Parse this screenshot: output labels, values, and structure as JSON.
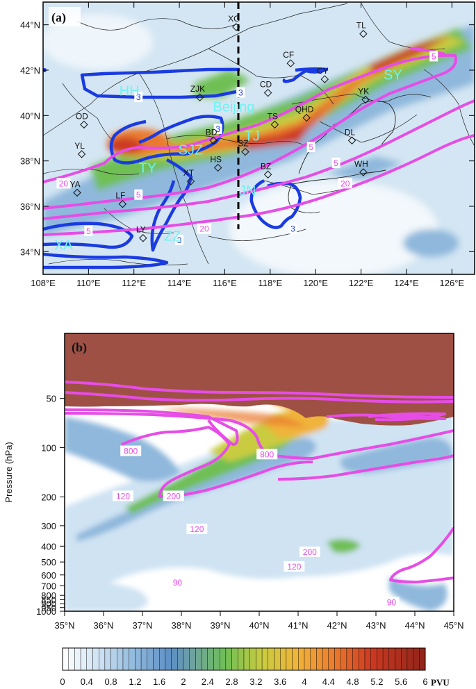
{
  "chart_data": [
    {
      "type": "heatmap",
      "panel_label": "(a)",
      "x_ticks": [
        "108°E",
        "110°E",
        "112°E",
        "114°E",
        "116°E",
        "118°E",
        "120°E",
        "122°E",
        "124°E",
        "126°E"
      ],
      "y_ticks": [
        "34°N",
        "36°N",
        "38°N",
        "40°N",
        "42°N",
        "44°N"
      ],
      "xlim": [
        108,
        127
      ],
      "ylim": [
        33,
        45
      ],
      "stations": [
        {
          "name": "XG",
          "lon": 116.5,
          "lat": 43.9
        },
        {
          "name": "TL",
          "lon": 122.1,
          "lat": 43.6
        },
        {
          "name": "CF",
          "lon": 118.9,
          "lat": 42.3
        },
        {
          "name": "CY",
          "lon": 120.4,
          "lat": 41.6
        },
        {
          "name": "ZJK",
          "lon": 114.9,
          "lat": 40.8
        },
        {
          "name": "CD",
          "lon": 117.9,
          "lat": 41.0
        },
        {
          "name": "YK",
          "lon": 122.2,
          "lat": 40.7
        },
        {
          "name": "OD",
          "lon": 109.8,
          "lat": 39.6
        },
        {
          "name": "QHD",
          "lon": 119.6,
          "lat": 39.9
        },
        {
          "name": "TS",
          "lon": 118.2,
          "lat": 39.6
        },
        {
          "name": "BD",
          "lon": 115.5,
          "lat": 38.9
        },
        {
          "name": "SZ",
          "lon": 116.9,
          "lat": 38.4
        },
        {
          "name": "DL",
          "lon": 121.6,
          "lat": 38.9
        },
        {
          "name": "YL",
          "lon": 109.7,
          "lat": 38.3
        },
        {
          "name": "HS",
          "lon": 115.7,
          "lat": 37.7
        },
        {
          "name": "BZ",
          "lon": 117.9,
          "lat": 37.4
        },
        {
          "name": "XT",
          "lon": 114.5,
          "lat": 37.1
        },
        {
          "name": "WH",
          "lon": 122.1,
          "lat": 37.5
        },
        {
          "name": "YA",
          "lon": 109.5,
          "lat": 36.6
        },
        {
          "name": "LF",
          "lon": 111.5,
          "lat": 36.1
        },
        {
          "name": "LY",
          "lon": 112.4,
          "lat": 34.6
        }
      ],
      "cities": [
        {
          "name": "HH",
          "lon": 111.8,
          "lat": 41.1
        },
        {
          "name": "Beijing",
          "lon": 116.4,
          "lat": 40.4
        },
        {
          "name": "SY",
          "lon": 123.4,
          "lat": 41.8
        },
        {
          "name": "TJ",
          "lon": 117.2,
          "lat": 39.1
        },
        {
          "name": "SJZ",
          "lon": 114.5,
          "lat": 38.5
        },
        {
          "name": "TY",
          "lon": 112.6,
          "lat": 37.7
        },
        {
          "name": "JN",
          "lon": 117.0,
          "lat": 36.7
        },
        {
          "name": "ZZ",
          "lon": 113.7,
          "lat": 34.7
        },
        {
          "name": "XA",
          "lon": 108.9,
          "lat": 34.3
        }
      ],
      "contour_labels": [
        {
          "text": "3",
          "color": "blue",
          "lon": 112.2,
          "lat": 40.8
        },
        {
          "text": "3",
          "color": "blue",
          "lon": 116.7,
          "lat": 41.0
        },
        {
          "text": "3",
          "color": "blue",
          "lon": 115.7,
          "lat": 39.4
        },
        {
          "text": "3",
          "color": "blue",
          "lon": 114.0,
          "lat": 34.5
        },
        {
          "text": "3",
          "color": "blue",
          "lon": 119.0,
          "lat": 35.0
        },
        {
          "text": "5",
          "color": "magenta",
          "lon": 125.2,
          "lat": 42.6
        },
        {
          "text": "5",
          "color": "magenta",
          "lon": 119.8,
          "lat": 38.6
        },
        {
          "text": "5",
          "color": "magenta",
          "lon": 120.9,
          "lat": 37.9
        },
        {
          "text": "5",
          "color": "magenta",
          "lon": 112.2,
          "lat": 36.5
        },
        {
          "text": "5",
          "color": "magenta",
          "lon": 110.0,
          "lat": 34.9
        },
        {
          "text": "20",
          "color": "magenta",
          "lon": 108.9,
          "lat": 37.0
        },
        {
          "text": "20",
          "color": "magenta",
          "lon": 115.1,
          "lat": 35.0
        },
        {
          "text": "20",
          "color": "magenta",
          "lon": 121.3,
          "lat": 37.0
        }
      ],
      "cross_section_lon": 116.6
    },
    {
      "type": "heatmap",
      "panel_label": "(b)",
      "ylabel": "Pressure (hPa)",
      "x_ticks": [
        "35°N",
        "36°N",
        "37°N",
        "38°N",
        "39°N",
        "40°N",
        "41°N",
        "42°N",
        "43°N",
        "44°N",
        "45°N"
      ],
      "xlim": [
        35,
        45
      ],
      "y_scale": "log",
      "y_ticks": [
        50,
        100,
        200,
        300,
        400,
        500,
        600,
        700,
        800,
        850,
        900,
        950,
        1000
      ],
      "ylim": [
        1000,
        20
      ],
      "contour_labels": [
        {
          "text": "800",
          "lat": 36.7,
          "p": 105
        },
        {
          "text": "800",
          "lat": 40.2,
          "p": 110
        },
        {
          "text": "120",
          "lat": 36.5,
          "p": 198
        },
        {
          "text": "200",
          "lat": 37.8,
          "p": 198
        },
        {
          "text": "120",
          "lat": 38.4,
          "p": 315
        },
        {
          "text": "200",
          "lat": 41.3,
          "p": 435
        },
        {
          "text": "120",
          "lat": 40.9,
          "p": 535
        },
        {
          "text": "90",
          "lat": 37.9,
          "p": 670
        },
        {
          "text": "90",
          "lat": 43.4,
          "p": 885
        }
      ]
    }
  ],
  "colorbar": {
    "ticks": [
      "0",
      "0.4",
      "0.8",
      "1.2",
      "1.6",
      "2",
      "2.4",
      "2.8",
      "3.2",
      "3.6",
      "4",
      "4.4",
      "4.8",
      "5.2",
      "5.6",
      "6"
    ],
    "unit": "PVU",
    "min": 0,
    "max": 6
  }
}
